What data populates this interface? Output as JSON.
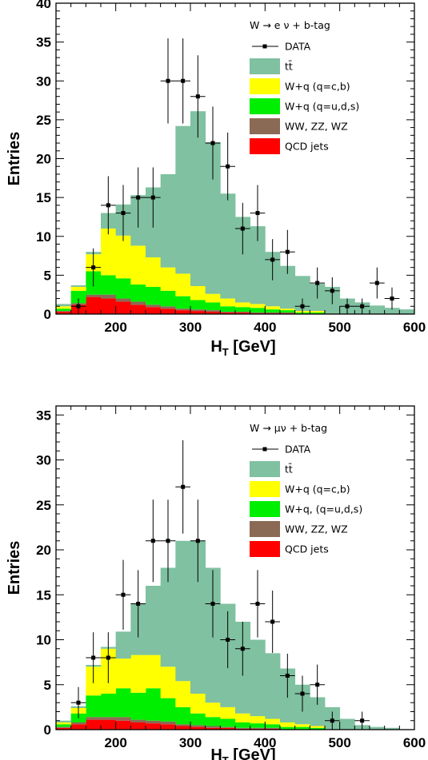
{
  "chart_data": [
    {
      "type": "bar",
      "stacked": true,
      "channel_label": "W → e ν + b-tag",
      "xlabel": "H",
      "xlabel_sub": "T",
      "xlabel_unit": " [GeV]",
      "ylabel": "Entries",
      "xlim": [
        120,
        600
      ],
      "ylim": [
        0,
        40
      ],
      "xticks": [
        200,
        300,
        400,
        500,
        600
      ],
      "yticks": [
        0,
        5,
        10,
        15,
        20,
        25,
        30,
        35,
        40
      ],
      "bin_edges": [
        120,
        140,
        160,
        180,
        200,
        220,
        240,
        260,
        280,
        300,
        320,
        340,
        360,
        380,
        400,
        420,
        440,
        460,
        480,
        500,
        520,
        540,
        560,
        580,
        600
      ],
      "series": [
        {
          "name": "QCD jets",
          "color": "#ff0000",
          "values": [
            0.3,
            1.2,
            2.2,
            2.0,
            1.6,
            1.2,
            0.9,
            0.7,
            0.5,
            0.4,
            0.3,
            0.2,
            0.2,
            0.1,
            0.1,
            0.1,
            0,
            0,
            0,
            0,
            0,
            0,
            0,
            0
          ]
        },
        {
          "name": "WW, ZZ, WZ",
          "color": "#8b6a55",
          "values": [
            0.1,
            0.2,
            0.3,
            0.5,
            0.4,
            0.4,
            0.3,
            0.3,
            0.2,
            0.2,
            0.2,
            0.1,
            0.1,
            0.1,
            0.1,
            0.1,
            0,
            0,
            0,
            0,
            0,
            0,
            0,
            0
          ]
        },
        {
          "name": "W+q (q=u,d,s)",
          "color": "#00ee00",
          "values": [
            0.3,
            1.6,
            3.0,
            2.5,
            2.6,
            2.2,
            2.3,
            2.0,
            1.6,
            1.2,
            1.0,
            0.7,
            0.6,
            0.6,
            0.4,
            0.3,
            0.2,
            0.2,
            0,
            0,
            0,
            0,
            0,
            0
          ]
        },
        {
          "name": "W+q (q=c,b)",
          "color": "#ffff00",
          "values": [
            0.3,
            0.5,
            2.2,
            6.0,
            5.5,
            5.0,
            3.8,
            3.0,
            2.9,
            1.8,
            1.1,
            1.0,
            0.6,
            0.5,
            0.4,
            0.2,
            0.2,
            0.2,
            0,
            0,
            0,
            0,
            0,
            0
          ]
        },
        {
          "name": "tt̄",
          "color": "#7fc1a0",
          "values": [
            0.3,
            0.2,
            0.3,
            2.0,
            4.0,
            6.5,
            9.0,
            12.0,
            19.0,
            22.5,
            19.5,
            13.5,
            11.0,
            10.0,
            7.0,
            5.5,
            4.5,
            3.5,
            3.5,
            2.0,
            1.5,
            1.1,
            0.8,
            0.6
          ]
        }
      ],
      "data_points": {
        "name": "DATA",
        "x": [
          150,
          170,
          190,
          210,
          230,
          250,
          270,
          290,
          310,
          330,
          350,
          370,
          390,
          410,
          430,
          450,
          470,
          490,
          510,
          530,
          550,
          570
        ],
        "y": [
          1,
          6,
          14,
          13,
          15,
          15,
          30,
          30,
          28,
          22,
          19,
          11,
          13,
          7,
          8,
          1,
          4,
          3,
          1,
          1,
          4,
          2
        ]
      }
    },
    {
      "type": "bar",
      "stacked": true,
      "channel_label": "W → μν + b-tag",
      "xlabel": "H",
      "xlabel_sub": "T",
      "xlabel_unit": " [GeV]",
      "ylabel": "Entries",
      "xlim": [
        120,
        600
      ],
      "ylim": [
        0,
        36
      ],
      "xticks": [
        200,
        300,
        400,
        500,
        600
      ],
      "yticks": [
        0,
        5,
        10,
        15,
        20,
        25,
        30,
        35
      ],
      "bin_edges": [
        120,
        140,
        160,
        180,
        200,
        220,
        240,
        260,
        280,
        300,
        320,
        340,
        360,
        380,
        400,
        420,
        440,
        460,
        480,
        500,
        520,
        540,
        560,
        580,
        600
      ],
      "series": [
        {
          "name": "QCD jets",
          "color": "#ff0000",
          "values": [
            0.2,
            0.6,
            1.1,
            1.1,
            1.0,
            0.8,
            0.7,
            0.6,
            0.4,
            0.3,
            0.2,
            0.2,
            0.1,
            0.1,
            0.1,
            0,
            0,
            0,
            0,
            0,
            0,
            0,
            0,
            0
          ]
        },
        {
          "name": "WW, ZZ, WZ",
          "color": "#8b6a55",
          "values": [
            0.1,
            0.2,
            0.3,
            0.3,
            0.4,
            0.3,
            0.3,
            0.3,
            0.2,
            0.2,
            0.2,
            0.1,
            0.1,
            0.1,
            0.1,
            0,
            0,
            0,
            0,
            0,
            0,
            0,
            0,
            0
          ]
        },
        {
          "name": "W+q, (q=u,d,s)",
          "color": "#00ee00",
          "values": [
            0.3,
            1.0,
            2.4,
            2.6,
            3.2,
            3.0,
            3.6,
            2.6,
            1.9,
            1.3,
            1.0,
            0.9,
            0.6,
            0.5,
            0.4,
            0.3,
            0.3,
            0.2,
            0,
            0,
            0,
            0,
            0,
            0
          ]
        },
        {
          "name": "W+q (q=c,b)",
          "color": "#ffff00",
          "values": [
            0.2,
            0.6,
            3.2,
            5.0,
            3.3,
            4.2,
            3.7,
            3.5,
            2.9,
            2.2,
            1.6,
            1.3,
            1.0,
            0.8,
            0.6,
            0.5,
            0.3,
            0.2,
            0,
            0,
            0,
            0,
            0,
            0
          ]
        },
        {
          "name": "tt̄",
          "color": "#7fc1a0",
          "values": [
            0.2,
            0.2,
            0.2,
            0.2,
            3.0,
            5.7,
            7.7,
            11.0,
            15.6,
            17.0,
            15.0,
            11.5,
            10.2,
            8.5,
            7.3,
            6.0,
            4.4,
            3.2,
            2.5,
            1.2,
            0.5,
            0.3,
            0.2,
            0
          ]
        }
      ],
      "data_points": {
        "name": "DATA",
        "x": [
          150,
          170,
          190,
          210,
          230,
          250,
          270,
          290,
          310,
          330,
          350,
          370,
          390,
          410,
          430,
          450,
          470,
          490,
          530
        ],
        "y": [
          3,
          8,
          8,
          15,
          14,
          21,
          21,
          27,
          21,
          14,
          10,
          9,
          14,
          12,
          6,
          4,
          5,
          1,
          1
        ]
      }
    }
  ]
}
